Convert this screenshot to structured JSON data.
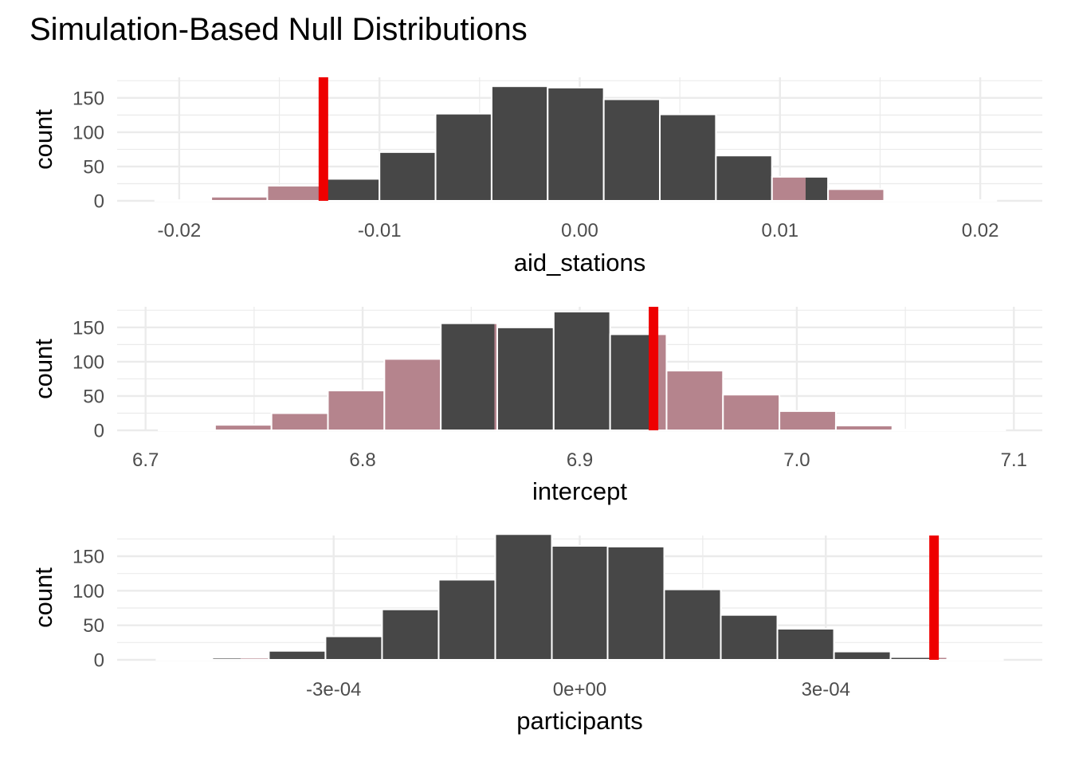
{
  "chart_data": {
    "title": "Simulation-Based Null Distributions",
    "colors": {
      "bar_fill": "#474747",
      "shade_fill": "#b5848d",
      "shade_outline": "#ffc0cb",
      "observed_line": "#ee0000",
      "grid": "#ebebeb"
    },
    "panels": [
      {
        "type": "bar",
        "xlabel": "aid_stations",
        "ylabel": "count",
        "xlim": [
          -0.0231,
          0.0231
        ],
        "ylim": [
          0,
          180
        ],
        "xticks": [
          -0.02,
          -0.01,
          0.0,
          0.01,
          0.02
        ],
        "xtick_labels": [
          "-0.02",
          "-0.01",
          "0.00",
          "0.01",
          "0.02"
        ],
        "yticks": [
          0,
          50,
          100,
          150
        ],
        "ytick_labels": [
          "0",
          "50",
          "100",
          "150"
        ],
        "observed": -0.0128,
        "bins": [
          {
            "x0": -0.0212,
            "x1": -0.0184,
            "count": 1,
            "shaded": 1
          },
          {
            "x0": -0.0184,
            "x1": -0.0156,
            "count": 6,
            "shaded": 1
          },
          {
            "x0": -0.0156,
            "x1": -0.0128,
            "count": 22,
            "shaded": 1
          },
          {
            "x0": -0.0128,
            "x1": -0.01,
            "count": 32,
            "shaded": 0
          },
          {
            "x0": -0.01,
            "x1": -0.0072,
            "count": 71,
            "shaded": 0
          },
          {
            "x0": -0.0072,
            "x1": -0.0044,
            "count": 127,
            "shaded": 0
          },
          {
            "x0": -0.0044,
            "x1": -0.0016,
            "count": 167,
            "shaded": 0
          },
          {
            "x0": -0.0016,
            "x1": 0.0012,
            "count": 165,
            "shaded": 0
          },
          {
            "x0": 0.0012,
            "x1": 0.004,
            "count": 148,
            "shaded": 0
          },
          {
            "x0": 0.004,
            "x1": 0.0068,
            "count": 126,
            "shaded": 0
          },
          {
            "x0": 0.0068,
            "x1": 0.0096,
            "count": 66,
            "shaded": 0
          },
          {
            "x0": 0.0096,
            "x1": 0.0124,
            "count": 35,
            "shaded": 0.6
          },
          {
            "x0": 0.0124,
            "x1": 0.0152,
            "count": 17,
            "shaded": 1
          },
          {
            "x0": 0.0152,
            "x1": 0.018,
            "count": 2,
            "shaded": 1
          },
          {
            "x0": 0.018,
            "x1": 0.0208,
            "count": 1,
            "shaded": 1
          }
        ]
      },
      {
        "type": "bar",
        "xlabel": "intercept",
        "ylabel": "count",
        "xlim": [
          6.6869,
          7.1131
        ],
        "ylim": [
          0,
          180
        ],
        "xticks": [
          6.7,
          6.8,
          6.9,
          7.0,
          7.1
        ],
        "xtick_labels": [
          "6.7",
          "6.8",
          "6.9",
          "7.0",
          "7.1"
        ],
        "yticks": [
          0,
          50,
          100,
          150
        ],
        "ytick_labels": [
          "0",
          "50",
          "100",
          "150"
        ],
        "observed": 6.934,
        "bins": [
          {
            "x0": 6.706,
            "x1": 6.732,
            "count": 1,
            "shaded": 1
          },
          {
            "x0": 6.732,
            "x1": 6.758,
            "count": 8,
            "shaded": 1
          },
          {
            "x0": 6.758,
            "x1": 6.784,
            "count": 25,
            "shaded": 1
          },
          {
            "x0": 6.784,
            "x1": 6.81,
            "count": 58,
            "shaded": 1
          },
          {
            "x0": 6.81,
            "x1": 6.836,
            "count": 104,
            "shaded": 1
          },
          {
            "x0": 6.836,
            "x1": 6.862,
            "count": 156,
            "shaded": 0.05
          },
          {
            "x0": 6.862,
            "x1": 6.888,
            "count": 150,
            "shaded": 0
          },
          {
            "x0": 6.888,
            "x1": 6.914,
            "count": 173,
            "shaded": 0
          },
          {
            "x0": 6.914,
            "x1": 6.94,
            "count": 140,
            "shaded": 0.23
          },
          {
            "x0": 6.94,
            "x1": 6.966,
            "count": 87,
            "shaded": 1
          },
          {
            "x0": 6.966,
            "x1": 6.992,
            "count": 52,
            "shaded": 1
          },
          {
            "x0": 6.992,
            "x1": 7.018,
            "count": 28,
            "shaded": 1
          },
          {
            "x0": 7.018,
            "x1": 7.044,
            "count": 7,
            "shaded": 1
          },
          {
            "x0": 7.044,
            "x1": 7.07,
            "count": 1,
            "shaded": 1
          },
          {
            "x0": 7.07,
            "x1": 7.096,
            "count": 1,
            "shaded": 1
          }
        ]
      },
      {
        "type": "bar",
        "xlabel": "participants",
        "ylabel": "count",
        "xlim": [
          -0.000564,
          0.000564
        ],
        "ylim": [
          0,
          180
        ],
        "xticks": [
          -0.0003,
          0.0,
          0.0003
        ],
        "xtick_labels": [
          "-3e-04",
          "0e+00",
          "3e-04"
        ],
        "yticks": [
          0,
          50,
          100,
          150
        ],
        "ytick_labels": [
          "0",
          "50",
          "100",
          "150"
        ],
        "observed": 0.000432,
        "bins": [
          {
            "x0": -0.000516,
            "x1": -0.000448,
            "count": 1,
            "shaded": 1
          },
          {
            "x0": -0.000448,
            "x1": -0.000379,
            "count": 3,
            "shaded": 0.5
          },
          {
            "x0": -0.000379,
            "x1": -0.00031,
            "count": 13,
            "shaded": 0
          },
          {
            "x0": -0.00031,
            "x1": -0.000241,
            "count": 34,
            "shaded": 0
          },
          {
            "x0": -0.000241,
            "x1": -0.000172,
            "count": 73,
            "shaded": 0
          },
          {
            "x0": -0.000172,
            "x1": -0.000103,
            "count": 116,
            "shaded": 0
          },
          {
            "x0": -0.000103,
            "x1": -3.4e-05,
            "count": 182,
            "shaded": 0
          },
          {
            "x0": -3.4e-05,
            "x1": 3.4e-05,
            "count": 165,
            "shaded": 0
          },
          {
            "x0": 3.4e-05,
            "x1": 0.000103,
            "count": 164,
            "shaded": 0
          },
          {
            "x0": 0.000103,
            "x1": 0.000172,
            "count": 102,
            "shaded": 0
          },
          {
            "x0": 0.000172,
            "x1": 0.000241,
            "count": 65,
            "shaded": 0
          },
          {
            "x0": 0.000241,
            "x1": 0.00031,
            "count": 45,
            "shaded": 0
          },
          {
            "x0": 0.00031,
            "x1": 0.000379,
            "count": 12,
            "shaded": 0
          },
          {
            "x0": 0.000379,
            "x1": 0.000448,
            "count": 4,
            "shaded": 0.25
          },
          {
            "x0": 0.000448,
            "x1": 0.000516,
            "count": 1,
            "shaded": 1
          }
        ]
      }
    ]
  }
}
